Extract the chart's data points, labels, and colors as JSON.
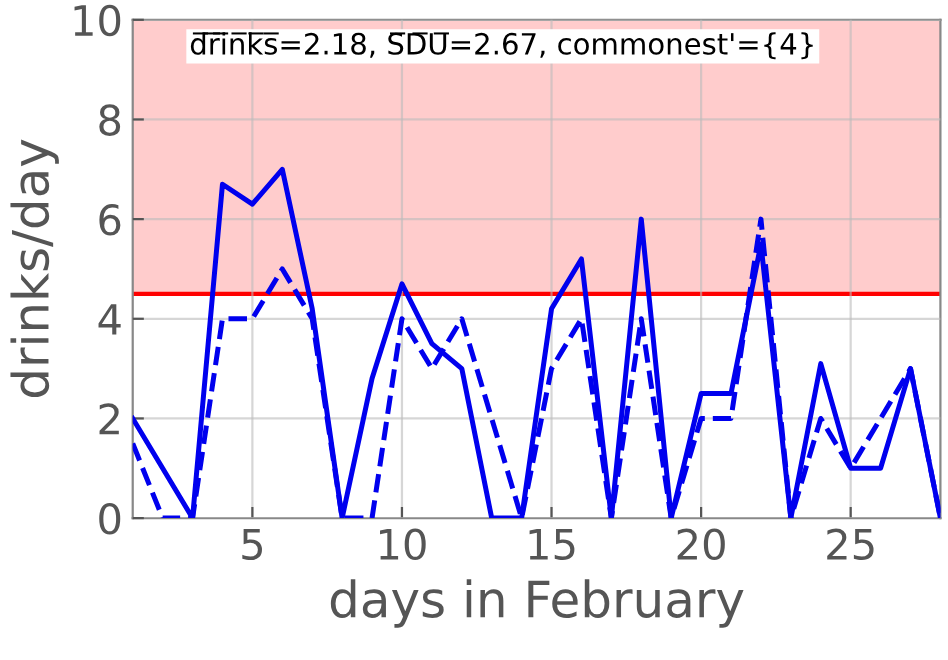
{
  "chart_data": {
    "type": "line",
    "xlabel": "days in February",
    "ylabel": "drinks/day",
    "x": [
      1,
      2,
      3,
      4,
      5,
      6,
      7,
      8,
      9,
      10,
      11,
      12,
      13,
      14,
      15,
      16,
      17,
      18,
      19,
      20,
      21,
      22,
      23,
      24,
      25,
      26,
      27,
      28
    ],
    "series": [
      {
        "color": "#0000ee",
        "line_style": "solid",
        "values": [
          2.0,
          1.0,
          0,
          6.7,
          6.3,
          7.0,
          4.2,
          0,
          2.8,
          4.7,
          3.5,
          3.0,
          0,
          0,
          4.2,
          5.2,
          0,
          6.0,
          0,
          2.5,
          2.5,
          5.5,
          0,
          3.1,
          1.0,
          1.0,
          3.0,
          0
        ]
      },
      {
        "color": "#0000ee",
        "line_style": "dashed",
        "values": [
          1.5,
          0,
          0,
          4,
          4,
          5,
          4,
          0,
          0,
          4,
          3,
          4,
          2,
          0,
          3,
          4,
          0,
          4,
          0,
          2,
          2,
          6,
          0,
          2,
          1,
          2,
          3,
          0
        ]
      }
    ],
    "xlim": [
      1,
      28
    ],
    "ylim": [
      0,
      10
    ],
    "xticks": [
      5,
      10,
      15,
      20,
      25
    ],
    "yticks": [
      0,
      2,
      4,
      6,
      8,
      10
    ],
    "grid": true,
    "marker": "none",
    "ref_lines": [
      {
        "axis": "y",
        "value": 4.5,
        "color": "#ff0000"
      }
    ],
    "bands": [
      {
        "axis": "y",
        "from": 4.5,
        "to": 10,
        "color": "#ffcccc"
      }
    ],
    "annotations": [
      "d̅r̅i̅n̅k̅s̅=2.18, S̅D̅U̅=2.67, commonest'={4}"
    ]
  }
}
